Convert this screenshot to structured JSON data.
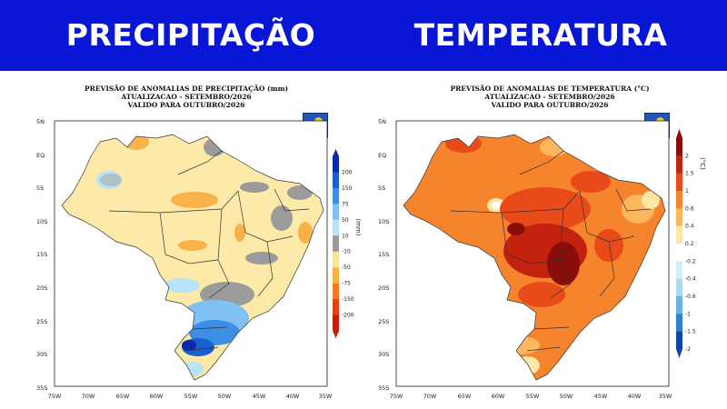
{
  "banner": {
    "left_title": "PRECIPITAÇÃO",
    "right_title": "TEMPERATURA",
    "background_color": "#0a16d6"
  },
  "maps": [
    {
      "id": "precip",
      "title_lines": [
        "PREVISÃO DE ANOMALIAS DE PRECIPITAÇÃO (mm)",
        "ATUALIZACAO - SETEMBRO/2026",
        "VALIDO PARA OUTUBRO/2026"
      ],
      "logo_text": "INMET",
      "unit_label": "(mm)",
      "colorbar": {
        "labels": [
          "200",
          "150",
          "75",
          "50",
          "10",
          "-10",
          "-50",
          "-75",
          "-150",
          "-200"
        ],
        "colors": [
          "#0b2aa8",
          "#1a5fd0",
          "#3d8fe6",
          "#7fc1f2",
          "#b9e3f8",
          "#9b9b9b",
          "#fde39a",
          "#f9b24a",
          "#f37a1f",
          "#e6400c",
          "#c41e0a"
        ]
      },
      "lat_labels": [
        "5N",
        "EQ",
        "5S",
        "10S",
        "15S",
        "20S",
        "25S",
        "30S",
        "35S"
      ],
      "lon_labels": [
        "75W",
        "70W",
        "65W",
        "60W",
        "55W",
        "50W",
        "45W",
        "40W",
        "35W"
      ]
    },
    {
      "id": "temp",
      "title_lines": [
        "PREVISÃO DE ANOMALIAS DE TEMPERATURA (°C)",
        "ATUALIZACAO - SETEMBRO/2026",
        "VALIDO PARA OUTUBRO/2026"
      ],
      "logo_text": "INMET",
      "unit_label": "(°C)",
      "colorbar": {
        "labels": [
          "2",
          "1.5",
          "1",
          "0.6",
          "0.4",
          "0.2",
          "-0.2",
          "-0.4",
          "-0.6",
          "-1",
          "-1.5",
          "-2"
        ],
        "colors": [
          "#8a0e0a",
          "#c3220f",
          "#e84a1a",
          "#f5842c",
          "#fbb65e",
          "#fde6a6",
          "#ffffff",
          "#d6eef8",
          "#a9d8f1",
          "#6ab3e6",
          "#2f7fd4",
          "#0f46a8"
        ]
      },
      "lat_labels": [
        "5N",
        "EQ",
        "5S",
        "10S",
        "15S",
        "20S",
        "25S",
        "30S",
        "35S"
      ],
      "lon_labels": [
        "75W",
        "70W",
        "65W",
        "60W",
        "55W",
        "50W",
        "45W",
        "40W",
        "35W"
      ]
    }
  ]
}
